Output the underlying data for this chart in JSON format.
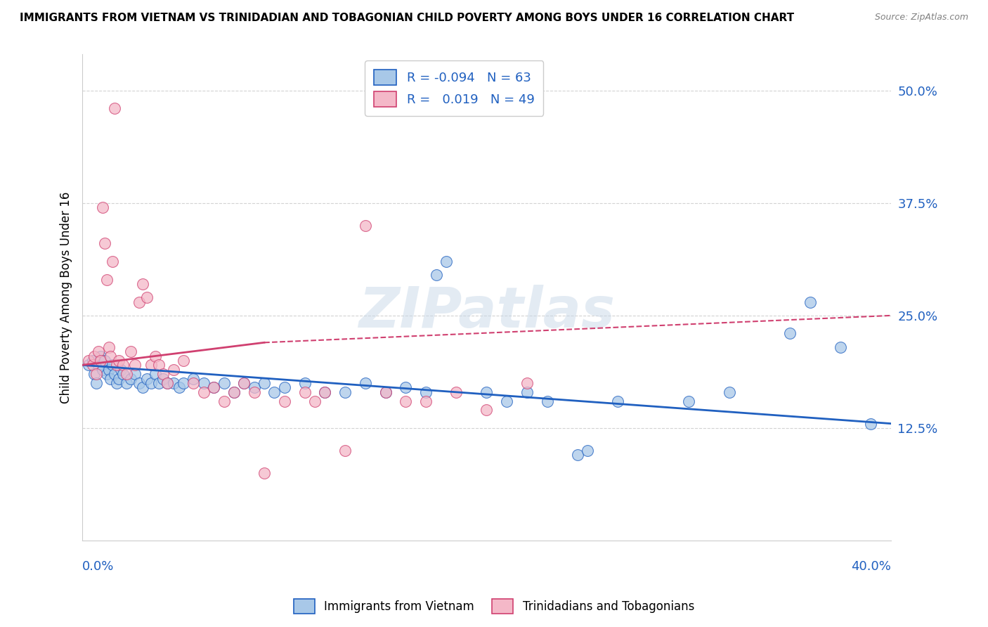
{
  "title": "IMMIGRANTS FROM VIETNAM VS TRINIDADIAN AND TOBAGONIAN CHILD POVERTY AMONG BOYS UNDER 16 CORRELATION CHART",
  "source": "Source: ZipAtlas.com",
  "ylabel": "Child Poverty Among Boys Under 16",
  "legend_label1": "Immigrants from Vietnam",
  "legend_label2": "Trinidadians and Tobagonians",
  "R1": "-0.094",
  "N1": "63",
  "R2": "0.019",
  "N2": "49",
  "color_blue": "#a8c8e8",
  "color_pink": "#f4b8c8",
  "line_color_blue": "#2060c0",
  "line_color_pink": "#d04070",
  "watermark": "ZIPatlas",
  "x_lim": [
    0.0,
    0.4
  ],
  "y_lim": [
    0.0,
    0.54
  ],
  "y_ticks": [
    0.125,
    0.25,
    0.375,
    0.5
  ],
  "y_tick_labels": [
    "12.5%",
    "25.0%",
    "37.5%",
    "50.0%"
  ],
  "blue_line": [
    0.195,
    0.13
  ],
  "pink_line_solid": [
    [
      0.0,
      0.195
    ],
    [
      0.09,
      0.22
    ]
  ],
  "pink_line_dashed": [
    [
      0.09,
      0.22
    ],
    [
      0.4,
      0.25
    ]
  ],
  "blue_points": [
    [
      0.003,
      0.195
    ],
    [
      0.005,
      0.2
    ],
    [
      0.006,
      0.185
    ],
    [
      0.007,
      0.175
    ],
    [
      0.008,
      0.195
    ],
    [
      0.009,
      0.205
    ],
    [
      0.01,
      0.19
    ],
    [
      0.011,
      0.2
    ],
    [
      0.012,
      0.185
    ],
    [
      0.013,
      0.19
    ],
    [
      0.014,
      0.18
    ],
    [
      0.015,
      0.195
    ],
    [
      0.016,
      0.185
    ],
    [
      0.017,
      0.175
    ],
    [
      0.018,
      0.18
    ],
    [
      0.019,
      0.19
    ],
    [
      0.02,
      0.185
    ],
    [
      0.022,
      0.175
    ],
    [
      0.024,
      0.18
    ],
    [
      0.026,
      0.185
    ],
    [
      0.028,
      0.175
    ],
    [
      0.03,
      0.17
    ],
    [
      0.032,
      0.18
    ],
    [
      0.034,
      0.175
    ],
    [
      0.036,
      0.185
    ],
    [
      0.038,
      0.175
    ],
    [
      0.04,
      0.18
    ],
    [
      0.042,
      0.175
    ],
    [
      0.045,
      0.175
    ],
    [
      0.048,
      0.17
    ],
    [
      0.05,
      0.175
    ],
    [
      0.055,
      0.18
    ],
    [
      0.06,
      0.175
    ],
    [
      0.065,
      0.17
    ],
    [
      0.07,
      0.175
    ],
    [
      0.075,
      0.165
    ],
    [
      0.08,
      0.175
    ],
    [
      0.085,
      0.17
    ],
    [
      0.09,
      0.175
    ],
    [
      0.095,
      0.165
    ],
    [
      0.1,
      0.17
    ],
    [
      0.11,
      0.175
    ],
    [
      0.12,
      0.165
    ],
    [
      0.13,
      0.165
    ],
    [
      0.14,
      0.175
    ],
    [
      0.15,
      0.165
    ],
    [
      0.16,
      0.17
    ],
    [
      0.17,
      0.165
    ],
    [
      0.175,
      0.295
    ],
    [
      0.18,
      0.31
    ],
    [
      0.2,
      0.165
    ],
    [
      0.21,
      0.155
    ],
    [
      0.22,
      0.165
    ],
    [
      0.23,
      0.155
    ],
    [
      0.245,
      0.095
    ],
    [
      0.25,
      0.1
    ],
    [
      0.265,
      0.155
    ],
    [
      0.3,
      0.155
    ],
    [
      0.32,
      0.165
    ],
    [
      0.35,
      0.23
    ],
    [
      0.36,
      0.265
    ],
    [
      0.375,
      0.215
    ],
    [
      0.39,
      0.13
    ]
  ],
  "pink_points": [
    [
      0.003,
      0.2
    ],
    [
      0.005,
      0.195
    ],
    [
      0.006,
      0.205
    ],
    [
      0.007,
      0.185
    ],
    [
      0.008,
      0.21
    ],
    [
      0.009,
      0.2
    ],
    [
      0.01,
      0.37
    ],
    [
      0.011,
      0.33
    ],
    [
      0.012,
      0.29
    ],
    [
      0.013,
      0.215
    ],
    [
      0.014,
      0.205
    ],
    [
      0.015,
      0.31
    ],
    [
      0.016,
      0.48
    ],
    [
      0.017,
      0.195
    ],
    [
      0.018,
      0.2
    ],
    [
      0.02,
      0.195
    ],
    [
      0.022,
      0.185
    ],
    [
      0.024,
      0.21
    ],
    [
      0.026,
      0.195
    ],
    [
      0.028,
      0.265
    ],
    [
      0.03,
      0.285
    ],
    [
      0.032,
      0.27
    ],
    [
      0.034,
      0.195
    ],
    [
      0.036,
      0.205
    ],
    [
      0.038,
      0.195
    ],
    [
      0.04,
      0.185
    ],
    [
      0.042,
      0.175
    ],
    [
      0.045,
      0.19
    ],
    [
      0.05,
      0.2
    ],
    [
      0.055,
      0.175
    ],
    [
      0.06,
      0.165
    ],
    [
      0.065,
      0.17
    ],
    [
      0.07,
      0.155
    ],
    [
      0.075,
      0.165
    ],
    [
      0.08,
      0.175
    ],
    [
      0.085,
      0.165
    ],
    [
      0.09,
      0.075
    ],
    [
      0.1,
      0.155
    ],
    [
      0.11,
      0.165
    ],
    [
      0.115,
      0.155
    ],
    [
      0.12,
      0.165
    ],
    [
      0.13,
      0.1
    ],
    [
      0.14,
      0.35
    ],
    [
      0.15,
      0.165
    ],
    [
      0.16,
      0.155
    ],
    [
      0.17,
      0.155
    ],
    [
      0.185,
      0.165
    ],
    [
      0.2,
      0.145
    ],
    [
      0.22,
      0.175
    ]
  ]
}
